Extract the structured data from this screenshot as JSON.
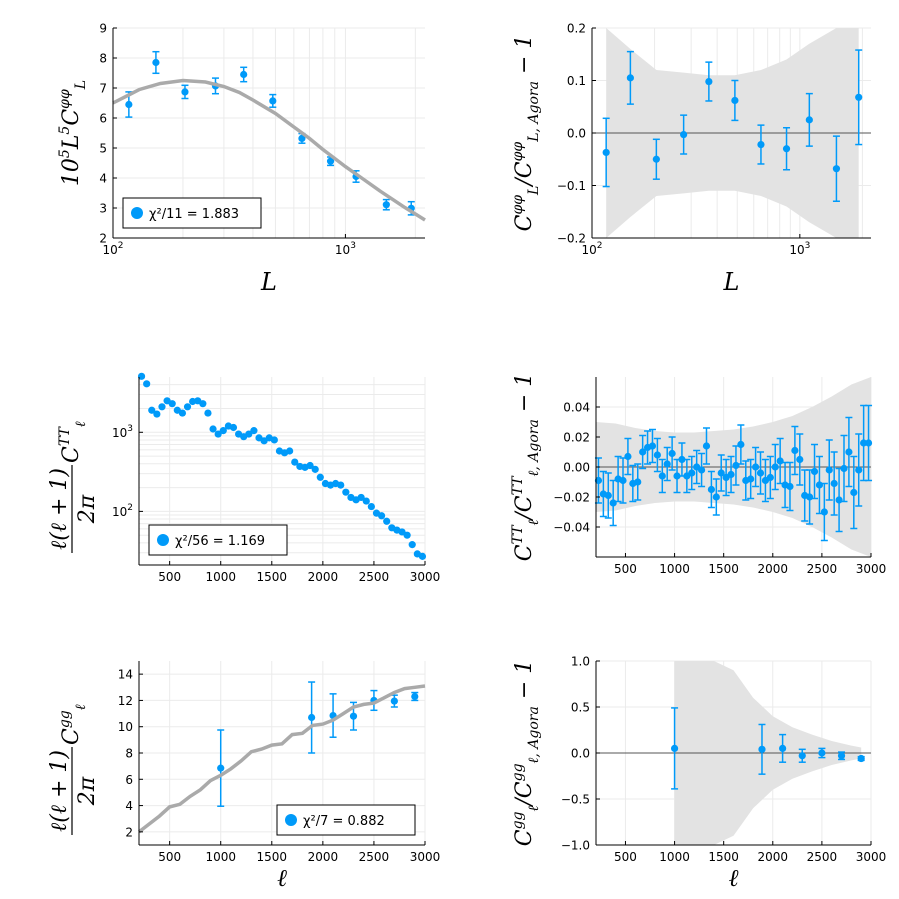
{
  "colors": {
    "points": "#009AF9",
    "theory": "#AAAAAA",
    "band": "#E3E3E3",
    "refline": "#555555",
    "grid": "#EBEBEB"
  },
  "chart_data": [
    {
      "id": "phi-spectrum",
      "type": "scatter",
      "xscale": "log",
      "yscale": "linear",
      "xlim": [
        100,
        2200
      ],
      "ylim": [
        2,
        9
      ],
      "xticks": [
        100,
        1000
      ],
      "xtick_labels": [
        [
          "10",
          "2"
        ],
        [
          "10",
          "3"
        ]
      ],
      "yticks": [
        2,
        3,
        4,
        5,
        6,
        7,
        8,
        9
      ],
      "ytick_labels": [
        "2",
        "3",
        "4",
        "5",
        "6",
        "7",
        "8",
        "9"
      ],
      "xgrid_minor": [
        200,
        300,
        400,
        500,
        600,
        700,
        800,
        900,
        2000
      ],
      "xlabel": "L",
      "ylabel_parts": [
        [
          "10",
          "normal"
        ],
        [
          "5",
          "sup"
        ],
        [
          "L",
          "normal"
        ],
        [
          "5",
          "sup"
        ],
        [
          "C",
          "normal"
        ],
        [
          "φφ",
          "sup"
        ],
        [
          "L",
          "sub"
        ]
      ],
      "legend": {
        "label": "χ²/11 = 1.883",
        "loc": "bottom-left"
      },
      "series": [
        {
          "name": "data",
          "x": [
            117,
            153,
            204,
            276,
            365,
            487,
            650,
            863,
            1111,
            1500,
            1920
          ],
          "y": [
            6.45,
            7.85,
            6.87,
            7.07,
            7.45,
            6.57,
            5.32,
            4.56,
            4.05,
            3.11,
            2.99
          ],
          "yerr": [
            0.42,
            0.36,
            0.22,
            0.26,
            0.24,
            0.21,
            0.16,
            0.14,
            0.19,
            0.17,
            0.22
          ]
        },
        {
          "name": "theory",
          "style": "line",
          "x": [
            100,
            130,
            160,
            200,
            250,
            300,
            350,
            400,
            500,
            600,
            700,
            800,
            900,
            1000,
            1200,
            1400,
            1600,
            1800,
            2000,
            2200
          ],
          "y": [
            6.5,
            6.95,
            7.15,
            7.25,
            7.2,
            7.05,
            6.85,
            6.6,
            6.15,
            5.7,
            5.32,
            4.95,
            4.65,
            4.38,
            3.95,
            3.58,
            3.28,
            3.02,
            2.8,
            2.6
          ]
        }
      ]
    },
    {
      "id": "phi-ratio",
      "type": "scatter",
      "xscale": "log",
      "yscale": "linear",
      "xlim": [
        100,
        2200
      ],
      "ylim": [
        -0.2,
        0.2
      ],
      "xticks": [
        100,
        1000
      ],
      "xtick_labels": [
        [
          "10",
          "2"
        ],
        [
          "10",
          "3"
        ]
      ],
      "yticks": [
        -0.2,
        -0.1,
        0.0,
        0.1,
        0.2
      ],
      "ytick_labels": [
        "−0.2",
        "−0.1",
        "0.0",
        "0.1",
        "0.2"
      ],
      "xgrid_minor": [
        200,
        300,
        400,
        500,
        600,
        700,
        800,
        900,
        2000
      ],
      "xlabel": "L",
      "ylabel_parts": [
        [
          "C",
          "normal"
        ],
        [
          "φφ",
          "sup"
        ],
        [
          "L",
          "sub"
        ],
        [
          "/C",
          "normal"
        ],
        [
          "φφ",
          "sup"
        ],
        [
          "L, Agora",
          "sub"
        ],
        [
          " − 1",
          "normal"
        ]
      ],
      "refline": 0,
      "band": {
        "x": [
          117,
          153,
          204,
          276,
          365,
          487,
          650,
          863,
          1111,
          1500,
          1920
        ],
        "half": [
          0.2,
          0.16,
          0.12,
          0.115,
          0.11,
          0.11,
          0.12,
          0.14,
          0.17,
          0.21,
          0.25
        ]
      },
      "series": [
        {
          "name": "data",
          "x": [
            117,
            153,
            204,
            276,
            365,
            487,
            650,
            863,
            1111,
            1500,
            1920
          ],
          "y": [
            -0.037,
            0.105,
            -0.05,
            -0.003,
            0.098,
            0.062,
            -0.022,
            -0.03,
            0.025,
            -0.068,
            0.068
          ],
          "yerr": [
            0.065,
            0.05,
            0.038,
            0.037,
            0.037,
            0.038,
            0.037,
            0.04,
            0.05,
            0.062,
            0.09
          ]
        }
      ]
    },
    {
      "id": "tt-spectrum",
      "type": "scatter",
      "xscale": "linear",
      "yscale": "log",
      "xlim": [
        200,
        3000
      ],
      "ylim": [
        21,
        5000
      ],
      "xticks": [
        500,
        1000,
        1500,
        2000,
        2500,
        3000
      ],
      "xtick_labels": [
        "500",
        "1000",
        "1500",
        "2000",
        "2500",
        "3000"
      ],
      "yticks": [
        100,
        1000
      ],
      "ytick_labels": [
        [
          "10",
          "2"
        ],
        [
          "10",
          "3"
        ]
      ],
      "ygrid_minor": [
        30,
        40,
        50,
        60,
        70,
        80,
        90,
        200,
        300,
        400,
        500,
        600,
        700,
        800,
        900,
        2000,
        3000,
        4000
      ],
      "xlabel": "",
      "ylabel_parts": [
        [
          "ℓ(ℓ + 1)",
          "num"
        ],
        [
          "2π",
          "den"
        ],
        [
          "C",
          "normal"
        ],
        [
          "TT",
          "sup"
        ],
        [
          "ℓ",
          "sub"
        ]
      ],
      "legend": {
        "label": "χ²/56 = 1.169",
        "loc": "bottom-left"
      },
      "series": [
        {
          "name": "data",
          "x": [
            225,
            275,
            325,
            375,
            425,
            475,
            525,
            575,
            625,
            675,
            725,
            775,
            825,
            875,
            925,
            975,
            1025,
            1075,
            1125,
            1175,
            1225,
            1275,
            1325,
            1375,
            1425,
            1475,
            1525,
            1575,
            1625,
            1675,
            1725,
            1775,
            1825,
            1875,
            1925,
            1975,
            2025,
            2075,
            2125,
            2175,
            2225,
            2275,
            2325,
            2375,
            2425,
            2475,
            2525,
            2575,
            2625,
            2675,
            2725,
            2775,
            2825,
            2875,
            2925,
            2975
          ],
          "y": [
            5100,
            4100,
            1900,
            1700,
            2100,
            2500,
            2300,
            1900,
            1750,
            2100,
            2450,
            2500,
            2300,
            1750,
            1100,
            950,
            1050,
            1200,
            1150,
            950,
            880,
            950,
            1050,
            850,
            780,
            850,
            800,
            580,
            550,
            580,
            420,
            370,
            360,
            380,
            340,
            270,
            225,
            215,
            225,
            215,
            175,
            150,
            140,
            150,
            135,
            115,
            95,
            88,
            75,
            62,
            58,
            55,
            50,
            38,
            29,
            27
          ],
          "yerr": [
            0,
            0,
            0,
            0,
            0,
            0,
            0,
            0,
            0,
            0,
            0,
            0,
            0,
            0,
            0,
            0,
            0,
            0,
            0,
            0,
            0,
            0,
            0,
            0,
            0,
            0,
            0,
            0,
            0,
            0,
            0,
            0,
            0,
            0,
            0,
            0,
            0,
            0,
            0,
            0,
            0,
            0,
            0,
            0,
            0,
            0,
            0,
            0,
            0,
            0,
            0,
            0,
            0,
            0,
            0,
            0
          ]
        }
      ]
    },
    {
      "id": "tt-ratio",
      "type": "scatter",
      "xscale": "linear",
      "yscale": "linear",
      "xlim": [
        200,
        3000
      ],
      "ylim": [
        -0.06,
        0.06
      ],
      "xticks": [
        500,
        1000,
        1500,
        2000,
        2500,
        3000
      ],
      "xtick_labels": [
        "500",
        "1000",
        "1500",
        "2000",
        "2500",
        "3000"
      ],
      "yticks": [
        -0.04,
        -0.02,
        0.0,
        0.02,
        0.04
      ],
      "ytick_labels": [
        "−0.04",
        "−0.02",
        "0.00",
        "0.02",
        "0.04"
      ],
      "xlabel": "",
      "ylabel_parts": [
        [
          "C",
          "normal"
        ],
        [
          "TT",
          "sup"
        ],
        [
          "ℓ",
          "sub"
        ],
        [
          "/C",
          "normal"
        ],
        [
          "TT",
          "sup"
        ],
        [
          "ℓ, Agora",
          "sub"
        ],
        [
          " − 1",
          "normal"
        ]
      ],
      "refline": 0,
      "band": {
        "x": [
          200,
          400,
          600,
          800,
          1000,
          1200,
          1400,
          1600,
          1800,
          2000,
          2200,
          2400,
          2600,
          2800,
          3000
        ],
        "half": [
          0.03,
          0.029,
          0.026,
          0.024,
          0.023,
          0.023,
          0.024,
          0.025,
          0.027,
          0.03,
          0.034,
          0.04,
          0.047,
          0.055,
          0.06
        ]
      },
      "series": [
        {
          "name": "data",
          "x": [
            225,
            275,
            325,
            375,
            425,
            475,
            525,
            575,
            625,
            675,
            725,
            775,
            825,
            875,
            925,
            975,
            1025,
            1075,
            1125,
            1175,
            1225,
            1275,
            1325,
            1375,
            1425,
            1475,
            1525,
            1575,
            1625,
            1675,
            1725,
            1775,
            1825,
            1875,
            1925,
            1975,
            2025,
            2075,
            2125,
            2175,
            2225,
            2275,
            2325,
            2375,
            2425,
            2475,
            2525,
            2575,
            2625,
            2675,
            2725,
            2775,
            2825,
            2875,
            2925,
            2975
          ],
          "y": [
            -0.009,
            -0.018,
            -0.019,
            -0.024,
            -0.008,
            -0.009,
            0.007,
            -0.011,
            -0.01,
            0.01,
            0.013,
            0.014,
            0.008,
            -0.006,
            0.002,
            0.009,
            -0.006,
            0.005,
            -0.006,
            -0.004,
            0.0,
            -0.002,
            0.014,
            -0.015,
            -0.02,
            -0.004,
            -0.007,
            -0.005,
            0.001,
            0.015,
            -0.009,
            -0.008,
            0.0,
            -0.004,
            -0.009,
            -0.007,
            0.0,
            0.004,
            -0.012,
            -0.013,
            0.011,
            0.005,
            -0.019,
            -0.02,
            -0.003,
            -0.012,
            -0.03,
            -0.002,
            -0.011,
            -0.022,
            -0.001,
            0.01,
            -0.017,
            -0.002,
            0.016,
            0.016
          ],
          "yerr": [
            0.015,
            0.015,
            0.015,
            0.015,
            0.015,
            0.015,
            0.012,
            0.012,
            0.012,
            0.011,
            0.011,
            0.011,
            0.011,
            0.011,
            0.011,
            0.011,
            0.011,
            0.011,
            0.011,
            0.011,
            0.011,
            0.011,
            0.012,
            0.012,
            0.012,
            0.012,
            0.012,
            0.012,
            0.013,
            0.013,
            0.013,
            0.013,
            0.013,
            0.014,
            0.014,
            0.014,
            0.015,
            0.015,
            0.015,
            0.016,
            0.016,
            0.017,
            0.017,
            0.018,
            0.018,
            0.019,
            0.019,
            0.02,
            0.021,
            0.021,
            0.022,
            0.023,
            0.024,
            0.024,
            0.025,
            0.025
          ]
        }
      ]
    },
    {
      "id": "gg-spectrum",
      "type": "scatter",
      "xscale": "linear",
      "yscale": "linear",
      "xlim": [
        200,
        3000
      ],
      "ylim": [
        1,
        15
      ],
      "xticks": [
        500,
        1000,
        1500,
        2000,
        2500,
        3000
      ],
      "xtick_labels": [
        "500",
        "1000",
        "1500",
        "2000",
        "2500",
        "3000"
      ],
      "yticks": [
        2,
        4,
        6,
        8,
        10,
        12,
        14
      ],
      "ytick_labels": [
        "2",
        "4",
        "6",
        "8",
        "10",
        "12",
        "14"
      ],
      "xlabel": "ℓ",
      "ylabel_parts": [
        [
          "ℓ(ℓ + 1)",
          "num"
        ],
        [
          "2π",
          "den"
        ],
        [
          "C",
          "normal"
        ],
        [
          "gg",
          "sup"
        ],
        [
          "ℓ",
          "sub"
        ]
      ],
      "legend": {
        "label": "χ²/7 = 0.882",
        "loc": "bottom-right"
      },
      "series": [
        {
          "name": "data",
          "x": [
            1000,
            1890,
            2100,
            2300,
            2500,
            2700,
            2900
          ],
          "y": [
            6.85,
            10.7,
            10.85,
            10.8,
            12.0,
            11.95,
            12.3
          ],
          "yerr": [
            2.9,
            2.7,
            1.65,
            1.05,
            0.75,
            0.45,
            0.3
          ]
        },
        {
          "name": "theory",
          "style": "line",
          "x": [
            200,
            300,
            400,
            500,
            600,
            700,
            800,
            900,
            1000,
            1100,
            1200,
            1300,
            1400,
            1500,
            1600,
            1700,
            1800,
            1900,
            2000,
            2100,
            2200,
            2300,
            2400,
            2500,
            2600,
            2700,
            2800,
            2900,
            3000
          ],
          "y": [
            2.0,
            2.6,
            3.2,
            3.9,
            4.1,
            4.7,
            5.2,
            5.9,
            6.3,
            6.8,
            7.4,
            8.1,
            8.3,
            8.6,
            8.7,
            9.4,
            9.5,
            10.1,
            10.2,
            10.5,
            11.0,
            11.5,
            11.7,
            11.8,
            12.2,
            12.6,
            12.9,
            13.0,
            13.1
          ]
        }
      ]
    },
    {
      "id": "gg-ratio",
      "type": "scatter",
      "xscale": "linear",
      "yscale": "linear",
      "xlim": [
        200,
        3000
      ],
      "ylim": [
        -1,
        1
      ],
      "xticks": [
        500,
        1000,
        1500,
        2000,
        2500,
        3000
      ],
      "xtick_labels": [
        "500",
        "1000",
        "1500",
        "2000",
        "2500",
        "3000"
      ],
      "yticks": [
        -1.0,
        -0.5,
        0.0,
        0.5,
        1.0
      ],
      "ytick_labels": [
        "−1.0",
        "−0.5",
        "0.0",
        "0.5",
        "1.0"
      ],
      "xlabel": "ℓ",
      "ylabel_parts": [
        [
          "C",
          "normal"
        ],
        [
          "gg",
          "sup"
        ],
        [
          "ℓ",
          "sub"
        ],
        [
          "/C",
          "normal"
        ],
        [
          "gg",
          "sup"
        ],
        [
          "ℓ, Agora",
          "sub"
        ],
        [
          " − 1",
          "normal"
        ]
      ],
      "refline": 0,
      "band": {
        "x": [
          1000,
          1200,
          1400,
          1600,
          1800,
          2000,
          2200,
          2400,
          2600,
          2800,
          2900
        ],
        "half": [
          1.2,
          1.2,
          1.15,
          0.9,
          0.6,
          0.4,
          0.28,
          0.2,
          0.13,
          0.08,
          0.06
        ]
      },
      "series": [
        {
          "name": "data",
          "x": [
            1000,
            1890,
            2100,
            2300,
            2500,
            2700,
            2900
          ],
          "y": [
            0.05,
            0.04,
            0.05,
            -0.03,
            0.0,
            -0.03,
            -0.06
          ],
          "yerr": [
            0.44,
            0.27,
            0.15,
            0.07,
            0.05,
            0.04,
            0.02
          ]
        }
      ]
    }
  ]
}
